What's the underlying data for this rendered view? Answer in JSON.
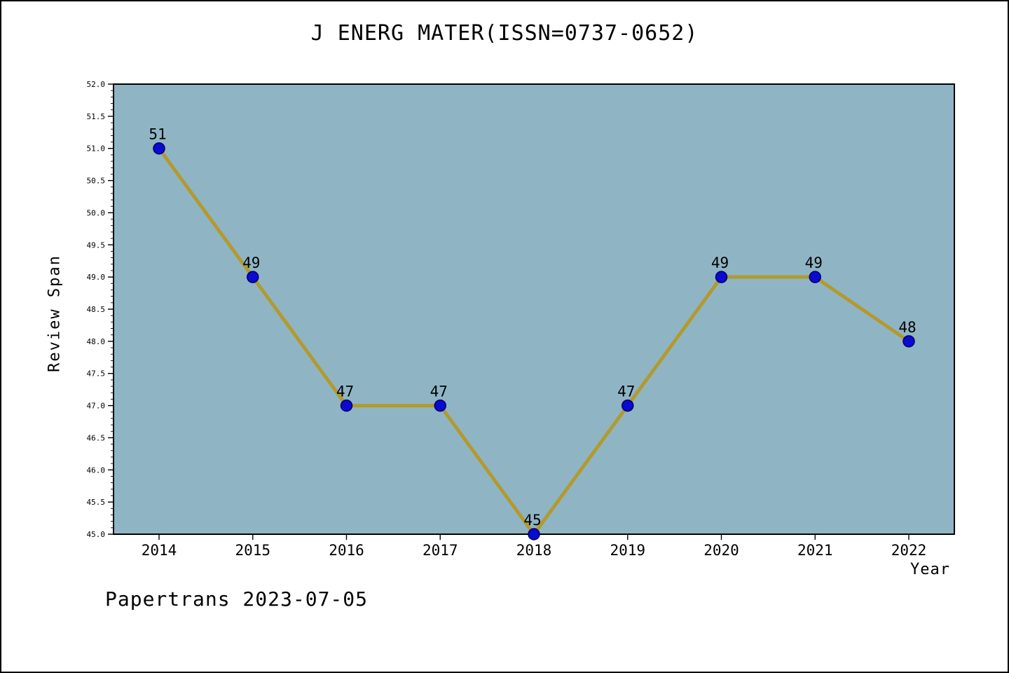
{
  "title": "J ENERG MATER(ISSN=0737-0652)",
  "footer": "Papertrans 2023-07-05",
  "chart_data": {
    "type": "line",
    "title": "J ENERG MATER(ISSN=0737-0652)",
    "xlabel": "Year",
    "ylabel": "Review Span",
    "categories": [
      "2014",
      "2015",
      "2016",
      "2017",
      "2018",
      "2019",
      "2020",
      "2021",
      "2022"
    ],
    "values": [
      51,
      49,
      47,
      47,
      45,
      47,
      49,
      49,
      48
    ],
    "ylim": [
      45.0,
      52.0
    ],
    "ytick_step": 0.5,
    "ytick_minor_step": 0.1,
    "grid": false,
    "legend": "none",
    "colors": {
      "plot_background": "#8fb5c5",
      "line": "#b29a2e",
      "marker_fill": "#0a0ad0",
      "marker_edge": "#00006a",
      "axis": "#000000",
      "text": "#000000"
    }
  }
}
